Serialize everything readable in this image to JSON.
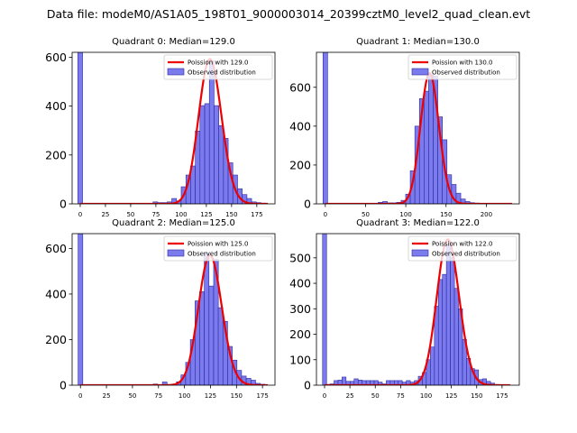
{
  "figure_title": "Data file: modeM0/AS1A05_198T01_9000003014_20399cztM0_level2_quad_clean.evt",
  "colors": {
    "bar_fill": "#7b7bee",
    "bar_edge": "#2a2aa0",
    "curve": "#ee0000",
    "axis": "#000000"
  },
  "chart_data": [
    {
      "type": "bar",
      "title": "Quadrant 0: Median=129.0",
      "xlim": [
        -8,
        193
      ],
      "ylim": [
        0,
        620
      ],
      "xticks": [
        0,
        25,
        50,
        75,
        100,
        125,
        150,
        175
      ],
      "yticks": [
        0,
        200,
        400,
        600
      ],
      "bin_width": 4.65,
      "zero_bin": {
        "x": 0,
        "value": 620
      },
      "bins": [
        {
          "x": 74.5,
          "v": 8
        },
        {
          "x": 79.2,
          "v": 5
        },
        {
          "x": 83.8,
          "v": 5
        },
        {
          "x": 88.5,
          "v": 8
        },
        {
          "x": 93.1,
          "v": 22
        },
        {
          "x": 97.8,
          "v": 12
        },
        {
          "x": 102.4,
          "v": 70
        },
        {
          "x": 107.1,
          "v": 118
        },
        {
          "x": 111.7,
          "v": 155
        },
        {
          "x": 116.4,
          "v": 298
        },
        {
          "x": 121.0,
          "v": 402
        },
        {
          "x": 125.7,
          "v": 410
        },
        {
          "x": 130.3,
          "v": 585
        },
        {
          "x": 135.0,
          "v": 402
        },
        {
          "x": 139.6,
          "v": 320
        },
        {
          "x": 144.3,
          "v": 268
        },
        {
          "x": 148.9,
          "v": 168
        },
        {
          "x": 153.6,
          "v": 118
        },
        {
          "x": 158.2,
          "v": 62
        },
        {
          "x": 162.9,
          "v": 38
        },
        {
          "x": 167.5,
          "v": 22
        },
        {
          "x": 172.2,
          "v": 8
        },
        {
          "x": 176.8,
          "v": 5
        },
        {
          "x": 181.5,
          "v": 3
        }
      ],
      "curve": {
        "label": "Poission with 129.0",
        "mean": 129.0,
        "peak": 592,
        "x_range": [
          0,
          186
        ]
      },
      "legend": {
        "curve_label": "Poission with 129.0",
        "bar_label": "Observed distribution",
        "position": "upper right"
      }
    },
    {
      "type": "bar",
      "title": "Quadrant 1: Median=130.0",
      "xlim": [
        -11,
        241
      ],
      "ylim": [
        0,
        780
      ],
      "xticks": [
        0,
        50,
        100,
        150,
        200
      ],
      "yticks": [
        0,
        200,
        400,
        600
      ],
      "bin_width": 5.7,
      "zero_bin": {
        "x": 0,
        "value": 780
      },
      "bins": [
        {
          "x": 68.5,
          "v": 8
        },
        {
          "x": 74.2,
          "v": 12
        },
        {
          "x": 79.9,
          "v": 5
        },
        {
          "x": 85.6,
          "v": 5
        },
        {
          "x": 91.3,
          "v": 8
        },
        {
          "x": 97.0,
          "v": 18
        },
        {
          "x": 102.7,
          "v": 50
        },
        {
          "x": 108.4,
          "v": 170
        },
        {
          "x": 114.1,
          "v": 400
        },
        {
          "x": 119.8,
          "v": 542
        },
        {
          "x": 125.5,
          "v": 580
        },
        {
          "x": 131.2,
          "v": 665
        },
        {
          "x": 136.9,
          "v": 658
        },
        {
          "x": 142.6,
          "v": 448
        },
        {
          "x": 148.3,
          "v": 330
        },
        {
          "x": 154.0,
          "v": 150
        },
        {
          "x": 159.7,
          "v": 100
        },
        {
          "x": 165.4,
          "v": 55
        },
        {
          "x": 171.1,
          "v": 25
        },
        {
          "x": 176.8,
          "v": 12
        },
        {
          "x": 182.5,
          "v": 6
        },
        {
          "x": 188.2,
          "v": 4
        }
      ],
      "curve": {
        "label": "Poission with 130.0",
        "mean": 130.0,
        "peak": 672,
        "x_range": [
          0,
          232
        ]
      },
      "legend": {
        "curve_label": "Poission with 130.0",
        "bar_label": "Observed distribution",
        "position": "upper right"
      }
    },
    {
      "type": "bar",
      "title": "Quadrant 2: Median=125.0",
      "xlim": [
        -8,
        187
      ],
      "ylim": [
        0,
        665
      ],
      "xticks": [
        0,
        25,
        50,
        75,
        100,
        125,
        150,
        175
      ],
      "yticks": [
        0,
        200,
        400,
        600
      ],
      "bin_width": 4.48,
      "zero_bin": {
        "x": 0,
        "value": 665
      },
      "bins": [
        {
          "x": 72.1,
          "v": 5
        },
        {
          "x": 81.0,
          "v": 14
        },
        {
          "x": 85.5,
          "v": 3
        },
        {
          "x": 90.0,
          "v": 5
        },
        {
          "x": 94.5,
          "v": 15
        },
        {
          "x": 98.9,
          "v": 45
        },
        {
          "x": 103.4,
          "v": 100
        },
        {
          "x": 107.9,
          "v": 200
        },
        {
          "x": 112.4,
          "v": 370
        },
        {
          "x": 116.8,
          "v": 410
        },
        {
          "x": 121.3,
          "v": 580
        },
        {
          "x": 125.8,
          "v": 435
        },
        {
          "x": 130.3,
          "v": 552
        },
        {
          "x": 134.7,
          "v": 340
        },
        {
          "x": 139.2,
          "v": 280
        },
        {
          "x": 143.7,
          "v": 170
        },
        {
          "x": 148.2,
          "v": 110
        },
        {
          "x": 152.6,
          "v": 65
        },
        {
          "x": 157.1,
          "v": 40
        },
        {
          "x": 161.6,
          "v": 30
        },
        {
          "x": 166.1,
          "v": 22
        },
        {
          "x": 170.5,
          "v": 8
        },
        {
          "x": 175.0,
          "v": 4
        }
      ],
      "curve": {
        "label": "Poission with 125.0",
        "mean": 125.0,
        "peak": 570,
        "x_range": [
          0,
          180
        ]
      },
      "legend": {
        "curve_label": "Poission with 125.0",
        "bar_label": "Observed distribution",
        "position": "upper right"
      }
    },
    {
      "type": "bar",
      "title": "Quadrant 3: Median=122.0",
      "xlim": [
        -8,
        192
      ],
      "ylim": [
        0,
        595
      ],
      "xticks": [
        0,
        25,
        50,
        75,
        100,
        125,
        150,
        175
      ],
      "yticks": [
        0,
        100,
        200,
        300,
        400,
        500
      ],
      "bin_width": 3.96,
      "zero_bin": {
        "x": 0,
        "value": 595
      },
      "bins": [
        {
          "x": 3.4,
          "v": 3
        },
        {
          "x": 7.4,
          "v": 5
        },
        {
          "x": 11.3,
          "v": 18
        },
        {
          "x": 15.3,
          "v": 20
        },
        {
          "x": 19.2,
          "v": 32
        },
        {
          "x": 23.2,
          "v": 15
        },
        {
          "x": 27.2,
          "v": 15
        },
        {
          "x": 31.1,
          "v": 25
        },
        {
          "x": 35.1,
          "v": 20
        },
        {
          "x": 39.0,
          "v": 18
        },
        {
          "x": 43.0,
          "v": 18
        },
        {
          "x": 46.9,
          "v": 18
        },
        {
          "x": 50.9,
          "v": 18
        },
        {
          "x": 54.9,
          "v": 12
        },
        {
          "x": 58.8,
          "v": 5
        },
        {
          "x": 62.8,
          "v": 18
        },
        {
          "x": 66.7,
          "v": 18
        },
        {
          "x": 70.7,
          "v": 18
        },
        {
          "x": 74.6,
          "v": 18
        },
        {
          "x": 78.6,
          "v": 12
        },
        {
          "x": 82.6,
          "v": 18
        },
        {
          "x": 86.5,
          "v": 12
        },
        {
          "x": 90.5,
          "v": 18
        },
        {
          "x": 94.4,
          "v": 35
        },
        {
          "x": 98.4,
          "v": 50
        },
        {
          "x": 102.3,
          "v": 100
        },
        {
          "x": 106.3,
          "v": 150
        },
        {
          "x": 110.3,
          "v": 310
        },
        {
          "x": 114.2,
          "v": 415
        },
        {
          "x": 118.2,
          "v": 435
        },
        {
          "x": 122.1,
          "v": 550
        },
        {
          "x": 126.1,
          "v": 502
        },
        {
          "x": 130.0,
          "v": 380
        },
        {
          "x": 134.0,
          "v": 300
        },
        {
          "x": 138.0,
          "v": 180
        },
        {
          "x": 141.9,
          "v": 105
        },
        {
          "x": 145.9,
          "v": 65
        },
        {
          "x": 149.8,
          "v": 60
        },
        {
          "x": 153.8,
          "v": 22
        },
        {
          "x": 157.7,
          "v": 25
        },
        {
          "x": 161.7,
          "v": 15
        },
        {
          "x": 165.7,
          "v": 8
        },
        {
          "x": 169.6,
          "v": 3
        }
      ],
      "curve": {
        "label": "Poission with 122.0",
        "mean": 122.0,
        "peak": 572,
        "x_range": [
          0,
          183
        ]
      },
      "legend": {
        "curve_label": "Poission with 122.0",
        "bar_label": "Observed distribution",
        "position": "upper right"
      }
    }
  ]
}
